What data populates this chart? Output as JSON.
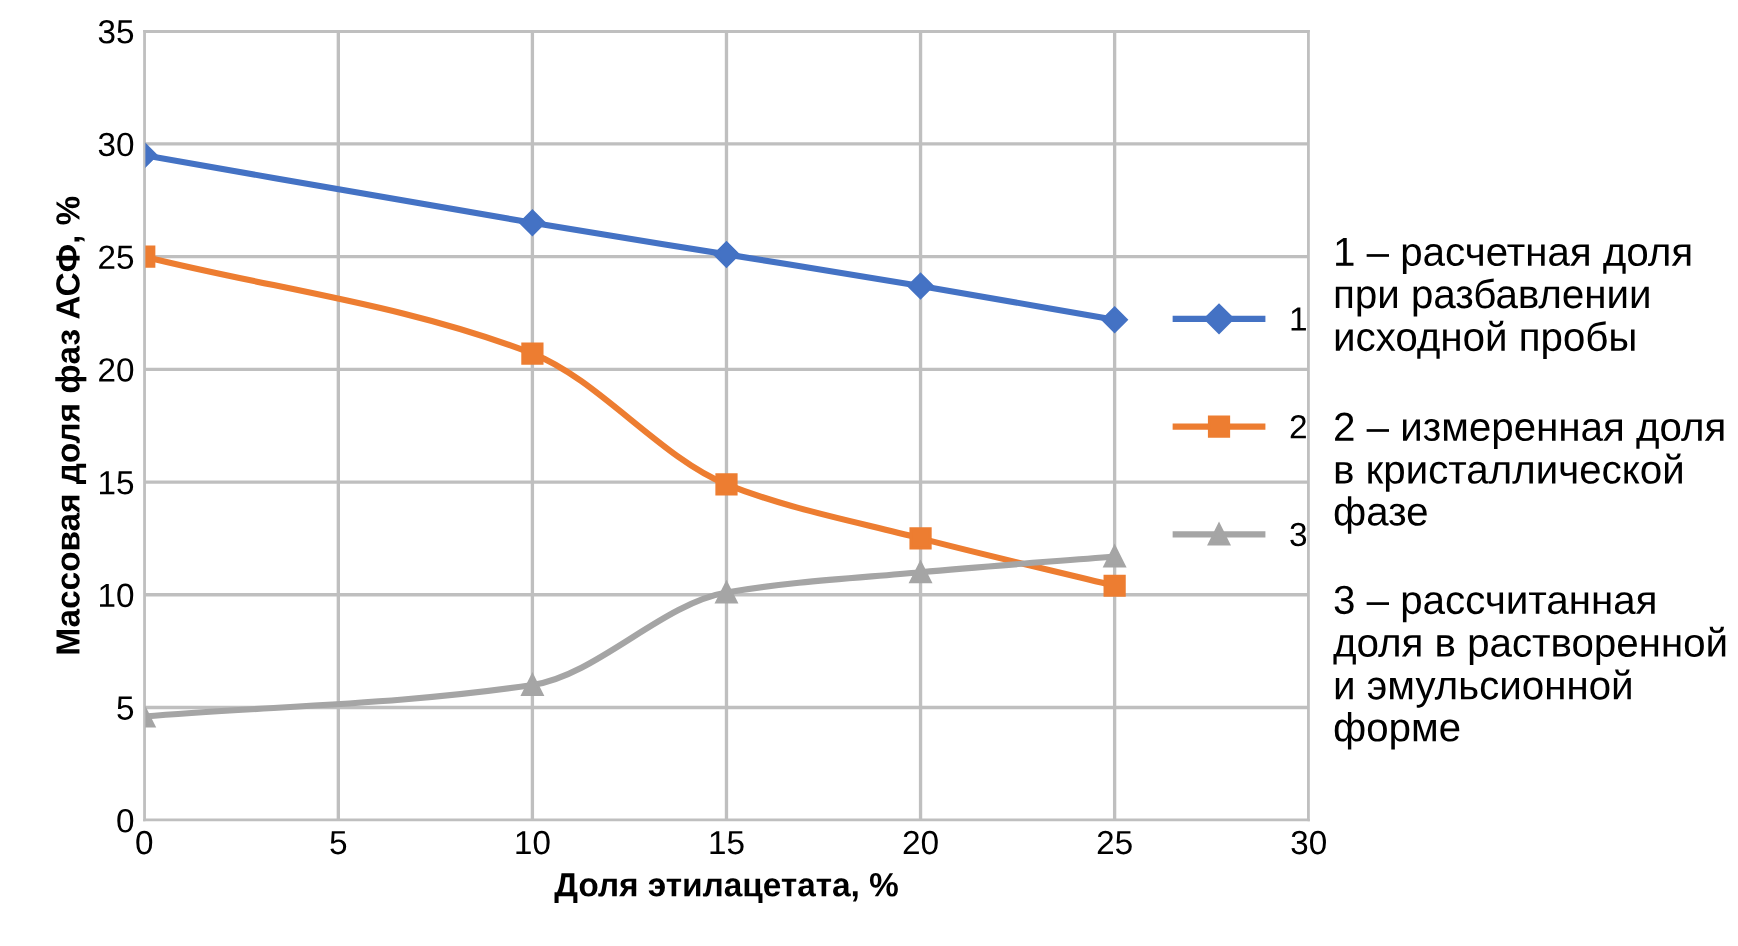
{
  "chart_data": {
    "type": "line",
    "xlabel": "Доля этилацетата, %",
    "ylabel": "Массовая доля фаз АСФ, %",
    "x": [
      0,
      10,
      15,
      20,
      25
    ],
    "series": [
      {
        "name": "1",
        "color": "#4472c4",
        "marker": "diamond",
        "values": [
          29.5,
          26.5,
          25.1,
          23.7,
          22.2
        ]
      },
      {
        "name": "2",
        "color": "#ed7d31",
        "marker": "square",
        "values": [
          25.0,
          20.7,
          14.9,
          12.5,
          10.4
        ]
      },
      {
        "name": "3",
        "color": "#a5a5a5",
        "marker": "triangle",
        "values": [
          4.6,
          6.0,
          10.1,
          11.0,
          11.7
        ]
      }
    ],
    "xlim": [
      0,
      30
    ],
    "xticks": [
      0,
      5,
      10,
      15,
      20,
      25,
      30
    ],
    "ylim": [
      0,
      35
    ],
    "yticks": [
      0,
      5,
      10,
      15,
      20,
      25,
      30,
      35
    ],
    "grid": true,
    "legend": "right",
    "line_style": "solid",
    "annotations": [
      "1 – расчетная доля при разбавлении исходной пробы",
      "2 – измеренная доля в кристаллической фазе",
      "3 – рассчитанная доля в растворенной и эмульсионной форме"
    ]
  }
}
